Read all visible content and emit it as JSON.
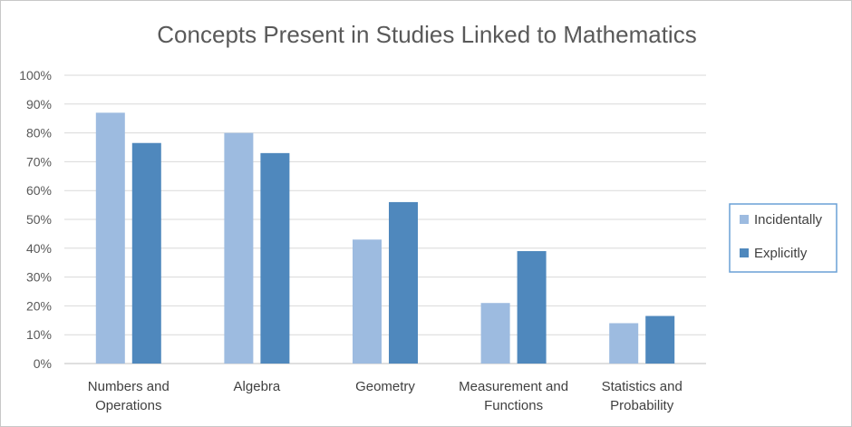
{
  "chart_data": {
    "type": "bar",
    "title": "Concepts Present in Studies Linked to Mathematics",
    "categories": [
      [
        "Numbers and",
        "Operations"
      ],
      [
        "Algebra"
      ],
      [
        "Geometry"
      ],
      [
        "Measurement and",
        "Functions"
      ],
      [
        "Statistics and",
        "Probability"
      ]
    ],
    "series": [
      {
        "name": "Incidentally",
        "color": "#9dbbe0",
        "values": [
          87,
          80,
          43,
          21,
          14
        ]
      },
      {
        "name": "Explicitly",
        "color": "#4f88bd",
        "values": [
          76.5,
          73,
          56,
          39,
          16.5
        ]
      }
    ],
    "y_ticks": [
      "0%",
      "10%",
      "20%",
      "30%",
      "40%",
      "50%",
      "60%",
      "70%",
      "80%",
      "90%",
      "100%"
    ],
    "ylim": [
      0,
      100
    ],
    "grid": true,
    "legend_position": "right"
  }
}
